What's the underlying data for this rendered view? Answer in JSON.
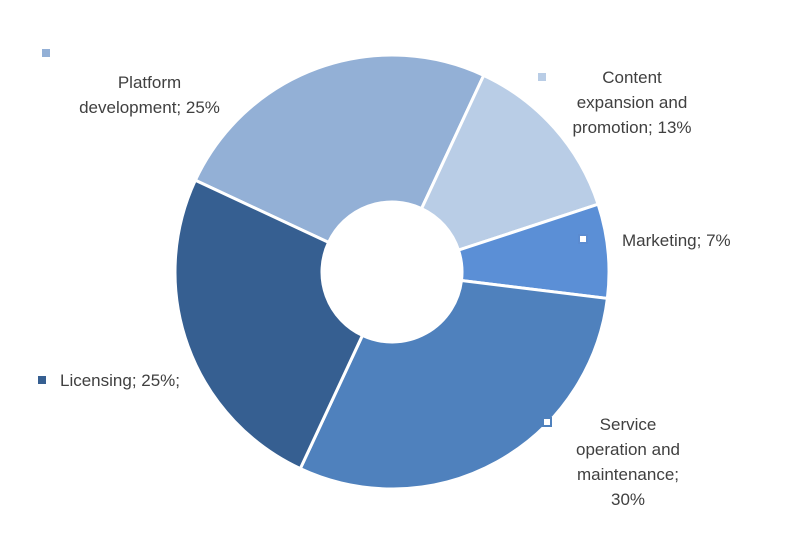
{
  "chart_data": {
    "type": "pie",
    "donut": true,
    "title": "",
    "slices": [
      {
        "name": "Platform development",
        "value": 25,
        "label_lines": [
          "Platform",
          "development; 25%"
        ],
        "color": "#93b0d6"
      },
      {
        "name": "Content expansion and promotion",
        "value": 13,
        "label_lines": [
          "Content",
          "expansion and",
          "promotion; 13%"
        ],
        "color": "#b9cde6"
      },
      {
        "name": "Marketing",
        "value": 7,
        "label_lines": [
          "Marketing; 7%"
        ],
        "color": "#5b8fd6"
      },
      {
        "name": "Service operation and maintenance",
        "value": 30,
        "label_lines": [
          "Service",
          "operation and",
          "maintenance;",
          "30%"
        ],
        "color": "#4f81bd"
      },
      {
        "name": "Licensing",
        "value": 25,
        "label_lines": [
          "Licensing; 25%;"
        ],
        "color": "#365f91"
      }
    ],
    "legend_placement": "data labels next to slices"
  }
}
